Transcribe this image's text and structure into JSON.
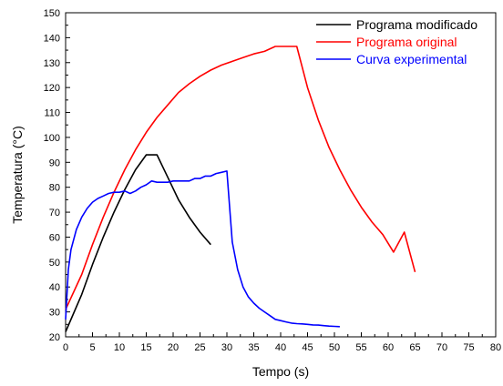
{
  "chart_data": {
    "type": "line",
    "title": "",
    "xlabel": "Tempo (s)",
    "ylabel": "Temperatura (°C)",
    "xlim": [
      0,
      80
    ],
    "ylim": [
      20,
      150
    ],
    "xticks": [
      "0",
      "5",
      "10",
      "15",
      "20",
      "25",
      "30",
      "35",
      "40",
      "45",
      "50",
      "55",
      "60",
      "65",
      "70",
      "75",
      "80"
    ],
    "yticks": [
      "20",
      "30",
      "40",
      "50",
      "60",
      "70",
      "80",
      "90",
      "100",
      "110",
      "120",
      "130",
      "140",
      "150"
    ],
    "grid": false,
    "legend_position": "top-right",
    "series": [
      {
        "name": "Programa modificado",
        "color": "#000000",
        "x": [
          0,
          3,
          5,
          7,
          9,
          11,
          13,
          15,
          17,
          19,
          21,
          23,
          25,
          27
        ],
        "y": [
          22,
          37,
          49,
          60,
          70,
          79,
          87,
          93,
          93,
          84,
          75,
          68,
          62,
          57
        ]
      },
      {
        "name": "Programa original",
        "color": "#ff0000",
        "x": [
          0,
          3,
          5,
          7,
          9,
          11,
          13,
          15,
          17,
          19,
          21,
          23,
          25,
          27,
          29,
          31,
          33,
          35,
          37,
          39,
          41,
          43,
          45,
          47,
          49,
          51,
          53,
          55,
          57,
          59,
          61,
          63,
          65
        ],
        "y": [
          31,
          45,
          57,
          68,
          78,
          87,
          95,
          102,
          108,
          113,
          118,
          121.5,
          124.5,
          127,
          129,
          130.5,
          132,
          133.5,
          134.5,
          136.5,
          136.5,
          136.5,
          120,
          107,
          96,
          87,
          79,
          72,
          66,
          61,
          54,
          62,
          46
        ]
      },
      {
        "name": "Curva experimental",
        "color": "#0000ff",
        "x": [
          0,
          0.5,
          1,
          2,
          3,
          4,
          5,
          6,
          7,
          8,
          9,
          10,
          11,
          12,
          13,
          14,
          15,
          16,
          17,
          18,
          19,
          20,
          21,
          22,
          23,
          24,
          25,
          26,
          27,
          28,
          29,
          30,
          31,
          32,
          33,
          34,
          35,
          36,
          37,
          38,
          39,
          40,
          41,
          42,
          43,
          44,
          45,
          46,
          47,
          48,
          49,
          50,
          51
        ],
        "y": [
          27,
          47,
          55,
          63,
          68,
          71.5,
          74,
          75.5,
          76.5,
          77.5,
          78,
          78,
          78.5,
          77.5,
          78.5,
          80,
          81,
          82.5,
          82,
          82,
          82,
          82.5,
          82.5,
          82.5,
          82.5,
          83.5,
          83.5,
          84.5,
          84.5,
          85.5,
          86,
          86.5,
          58,
          47,
          40,
          36,
          33.5,
          31.5,
          30,
          28.5,
          27,
          26.5,
          26,
          25.5,
          25.3,
          25.2,
          25,
          24.8,
          24.7,
          24.5,
          24.3,
          24.2,
          24.1
        ]
      }
    ]
  }
}
